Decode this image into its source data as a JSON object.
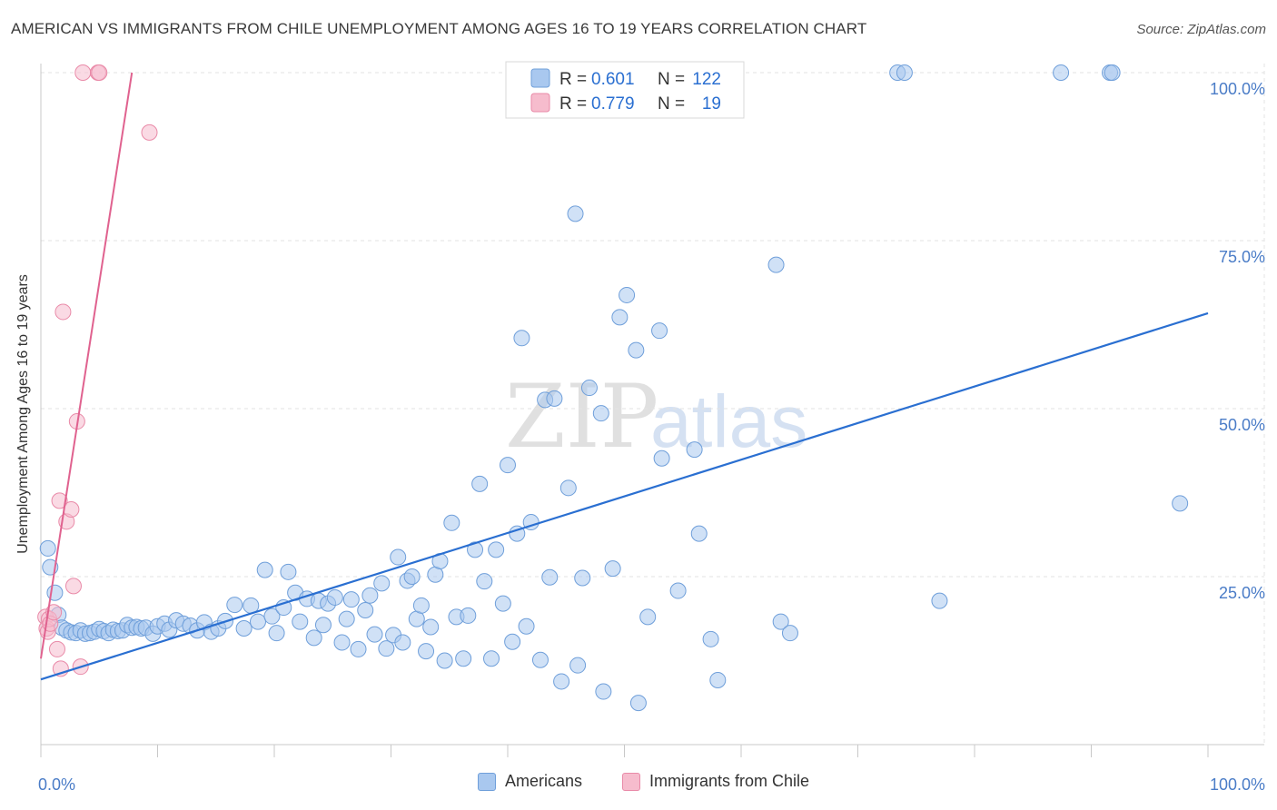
{
  "header": {
    "title": "AMERICAN VS IMMIGRANTS FROM CHILE UNEMPLOYMENT AMONG AGES 16 TO 19 YEARS CORRELATION CHART",
    "source": "Source: ZipAtlas.com"
  },
  "watermark": {
    "zip": "ZIP",
    "atlas": "atlas"
  },
  "colors": {
    "blue_fill": "#a9c8ef",
    "blue_stroke": "#6f9fda",
    "blue_line": "#2a6fd1",
    "pink_fill": "#f6bccd",
    "pink_stroke": "#e98aa8",
    "pink_line": "#e0628f",
    "axis_text": "#4a7cc7",
    "grid": "#e3e3e3"
  },
  "legend": {
    "r_label": "R =",
    "n_label": "N =",
    "rows": [
      {
        "r": "0.601",
        "n": "122"
      },
      {
        "r": "0.779",
        "n": "19"
      }
    ]
  },
  "legend_bottom": [
    "Americans",
    "Immigrants from Chile"
  ],
  "chart_data": {
    "type": "scatter",
    "title": "AMERICAN VS IMMIGRANTS FROM CHILE UNEMPLOYMENT AMONG AGES 16 TO 19 YEARS CORRELATION CHART",
    "xlabel": "",
    "ylabel": "Unemployment Among Ages 16 to 19 years",
    "xlim": [
      0,
      100
    ],
    "ylim": [
      0,
      100
    ],
    "x_tick_labels": [
      "0.0%",
      "100.0%"
    ],
    "y_ticks": [
      25,
      50,
      75,
      100
    ],
    "y_tick_labels": [
      "25.0%",
      "50.0%",
      "75.0%",
      "100.0%"
    ],
    "grid": true,
    "series": [
      {
        "name": "Americans",
        "r": 0.601,
        "n": 122,
        "trend": {
          "x": [
            0,
            100
          ],
          "y": [
            9.7,
            64.2
          ]
        },
        "points": [
          [
            0.6,
            29.2
          ],
          [
            0.8,
            26.4
          ],
          [
            1.2,
            22.6
          ],
          [
            1.5,
            19.3
          ],
          [
            1.8,
            17.4
          ],
          [
            2.2,
            17.0
          ],
          [
            2.6,
            16.7
          ],
          [
            3.0,
            16.6
          ],
          [
            3.4,
            17.0
          ],
          [
            3.8,
            16.5
          ],
          [
            4.2,
            16.6
          ],
          [
            4.6,
            16.8
          ],
          [
            5.0,
            17.2
          ],
          [
            5.4,
            16.9
          ],
          [
            5.8,
            16.6
          ],
          [
            6.2,
            17.1
          ],
          [
            6.6,
            16.9
          ],
          [
            7.0,
            17.0
          ],
          [
            7.4,
            17.8
          ],
          [
            7.8,
            17.4
          ],
          [
            8.2,
            17.5
          ],
          [
            8.6,
            17.3
          ],
          [
            9.0,
            17.4
          ],
          [
            9.6,
            16.5
          ],
          [
            10.0,
            17.6
          ],
          [
            10.6,
            18.0
          ],
          [
            11.0,
            17.1
          ],
          [
            11.6,
            18.5
          ],
          [
            12.2,
            18.0
          ],
          [
            12.8,
            17.7
          ],
          [
            13.4,
            17.0
          ],
          [
            14.0,
            18.2
          ],
          [
            14.6,
            16.8
          ],
          [
            15.2,
            17.3
          ],
          [
            15.8,
            18.4
          ],
          [
            16.6,
            20.8
          ],
          [
            17.4,
            17.3
          ],
          [
            18.0,
            20.7
          ],
          [
            18.6,
            18.3
          ],
          [
            19.2,
            26.0
          ],
          [
            19.8,
            19.1
          ],
          [
            20.2,
            16.6
          ],
          [
            20.8,
            20.4
          ],
          [
            21.2,
            25.7
          ],
          [
            21.8,
            22.6
          ],
          [
            22.2,
            18.3
          ],
          [
            22.8,
            21.7
          ],
          [
            23.4,
            15.9
          ],
          [
            23.8,
            21.4
          ],
          [
            24.2,
            17.8
          ],
          [
            24.6,
            21.0
          ],
          [
            25.2,
            21.9
          ],
          [
            25.8,
            15.2
          ],
          [
            26.2,
            18.7
          ],
          [
            26.6,
            21.6
          ],
          [
            27.2,
            14.2
          ],
          [
            27.8,
            20.0
          ],
          [
            28.2,
            22.2
          ],
          [
            28.6,
            16.4
          ],
          [
            29.2,
            24.0
          ],
          [
            29.6,
            14.3
          ],
          [
            30.2,
            16.3
          ],
          [
            30.6,
            27.9
          ],
          [
            31.0,
            15.2
          ],
          [
            31.4,
            24.4
          ],
          [
            31.8,
            25.0
          ],
          [
            32.2,
            18.7
          ],
          [
            32.6,
            20.7
          ],
          [
            33.0,
            13.9
          ],
          [
            33.4,
            17.5
          ],
          [
            33.8,
            25.3
          ],
          [
            34.2,
            27.3
          ],
          [
            34.6,
            12.5
          ],
          [
            35.2,
            33.0
          ],
          [
            35.6,
            19.0
          ],
          [
            36.2,
            12.8
          ],
          [
            36.6,
            19.2
          ],
          [
            37.2,
            29.0
          ],
          [
            37.6,
            38.8
          ],
          [
            38.0,
            24.3
          ],
          [
            38.6,
            12.8
          ],
          [
            39.0,
            29.0
          ],
          [
            39.6,
            21.0
          ],
          [
            40.0,
            41.6
          ],
          [
            40.4,
            15.3
          ],
          [
            40.8,
            31.4
          ],
          [
            41.2,
            60.5
          ],
          [
            41.6,
            17.6
          ],
          [
            42.0,
            33.1
          ],
          [
            42.8,
            12.6
          ],
          [
            43.2,
            51.3
          ],
          [
            43.6,
            24.9
          ],
          [
            44.0,
            51.5
          ],
          [
            44.6,
            9.4
          ],
          [
            45.2,
            38.2
          ],
          [
            45.8,
            79.0
          ],
          [
            46.0,
            11.8
          ],
          [
            46.4,
            24.8
          ],
          [
            47.0,
            53.1
          ],
          [
            48.0,
            49.3
          ],
          [
            48.2,
            7.9
          ],
          [
            49.0,
            26.2
          ],
          [
            49.6,
            63.6
          ],
          [
            50.2,
            66.9
          ],
          [
            51.0,
            58.7
          ],
          [
            51.2,
            6.2
          ],
          [
            52.0,
            19.0
          ],
          [
            53.0,
            61.6
          ],
          [
            53.2,
            42.6
          ],
          [
            54.6,
            22.9
          ],
          [
            56.0,
            43.9
          ],
          [
            56.4,
            31.4
          ],
          [
            57.4,
            15.7
          ],
          [
            58.0,
            9.6
          ],
          [
            63.0,
            71.4
          ],
          [
            63.4,
            18.3
          ],
          [
            64.2,
            16.6
          ],
          [
            73.4,
            100.0
          ],
          [
            74.0,
            100.0
          ],
          [
            77.0,
            21.4
          ],
          [
            87.4,
            100.0
          ],
          [
            91.6,
            100.0
          ],
          [
            91.8,
            100.0
          ],
          [
            97.6,
            35.9
          ]
        ]
      },
      {
        "name": "Immigrants from Chile",
        "r": 0.779,
        "n": 19,
        "trend": {
          "x": [
            0,
            7.8
          ],
          "y": [
            12.8,
            100.0
          ]
        },
        "points": [
          [
            0.4,
            19.0
          ],
          [
            0.5,
            17.3
          ],
          [
            0.6,
            16.8
          ],
          [
            0.7,
            18.7
          ],
          [
            0.8,
            18.0
          ],
          [
            1.1,
            19.7
          ],
          [
            1.4,
            14.2
          ],
          [
            1.6,
            36.3
          ],
          [
            1.7,
            11.3
          ],
          [
            1.9,
            64.4
          ],
          [
            2.2,
            33.2
          ],
          [
            2.6,
            35.0
          ],
          [
            2.8,
            23.6
          ],
          [
            3.1,
            48.1
          ],
          [
            3.4,
            11.6
          ],
          [
            3.6,
            100.0
          ],
          [
            4.9,
            100.0
          ],
          [
            5.0,
            100.0
          ],
          [
            9.3,
            91.1
          ]
        ]
      }
    ]
  }
}
